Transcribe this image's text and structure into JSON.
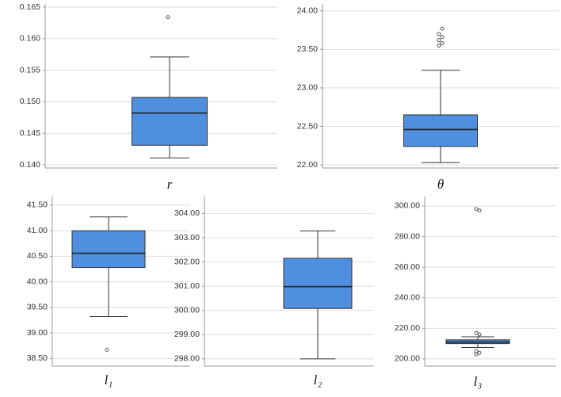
{
  "chart_data": [
    {
      "type": "box",
      "x_label": "r",
      "color": "#4f8fe0",
      "grid": true,
      "ylim": [
        0.1395,
        0.1655
      ],
      "yticks": [
        {
          "value": 0.14,
          "label": "0.140"
        },
        0.145,
        {
          "value": 0.15,
          "label": "0.150"
        },
        0.155,
        {
          "value": 0.16,
          "label": "0.160"
        },
        0.165
      ],
      "boxes": [
        {
          "whislo": 0.1411,
          "q1": 0.1431,
          "med": 0.1482,
          "q3": 0.1507,
          "whishi": 0.1571,
          "fliers": [
            0.1634
          ]
        }
      ]
    },
    {
      "type": "box",
      "x_label": "θ",
      "color": "#4f8fe0",
      "grid": true,
      "ylim": [
        21.96,
        24.09
      ],
      "yticks": [
        {
          "value": 22,
          "label": "22.00"
        },
        {
          "value": 22.5,
          "label": "22.50"
        },
        {
          "value": 23,
          "label": "23.00"
        },
        {
          "value": 23.5,
          "label": "23.50"
        },
        {
          "value": 24,
          "label": "24.00"
        }
      ],
      "boxes": [
        {
          "whislo": 22.03,
          "q1": 22.24,
          "med": 22.46,
          "q3": 22.65,
          "whishi": 23.23,
          "fliers": [
            23.55,
            23.58,
            23.62,
            23.66,
            23.7,
            23.77
          ]
        }
      ]
    },
    {
      "type": "box",
      "x_label": "l₁",
      "color": "#4f8fe0",
      "grid": true,
      "ylim": [
        38.35,
        41.67
      ],
      "yticks": [
        {
          "value": 38.5,
          "label": "38.50"
        },
        {
          "value": 39,
          "label": "39.00"
        },
        {
          "value": 39.5,
          "label": "39.50"
        },
        {
          "value": 40,
          "label": "40.00"
        },
        {
          "value": 40.5,
          "label": "40.50"
        },
        {
          "value": 41,
          "label": "41.00"
        },
        {
          "value": 41.5,
          "label": "41.50"
        }
      ],
      "boxes": [
        {
          "whislo": 39.32,
          "q1": 40.28,
          "med": 40.56,
          "q3": 41.0,
          "whishi": 41.27,
          "fliers": [
            38.67
          ]
        }
      ]
    },
    {
      "type": "box",
      "x_label": "l₂",
      "color": "#4f8fe0",
      "grid": true,
      "ylim": [
        297.7,
        304.7
      ],
      "yticks": [
        {
          "value": 298,
          "label": "298.00"
        },
        {
          "value": 299,
          "label": "299.00"
        },
        {
          "value": 300,
          "label": "300.00"
        },
        {
          "value": 301,
          "label": "301.00"
        },
        {
          "value": 302,
          "label": "302.00"
        },
        {
          "value": 303,
          "label": "303.00"
        },
        {
          "value": 304,
          "label": "304.00"
        }
      ],
      "boxes": [
        {
          "whislo": 298.0,
          "q1": 300.08,
          "med": 300.98,
          "q3": 302.15,
          "whishi": 303.28,
          "fliers": []
        }
      ]
    },
    {
      "type": "box",
      "x_label": "l₃",
      "color": "#4f8fe0",
      "grid": true,
      "ylim": [
        195.3,
        306.2
      ],
      "yticks": [
        {
          "value": 200,
          "label": "200.00"
        },
        {
          "value": 220,
          "label": "220.00"
        },
        {
          "value": 240,
          "label": "240.00"
        },
        {
          "value": 260,
          "label": "260.00"
        },
        {
          "value": 280,
          "label": "280.00"
        },
        {
          "value": 300,
          "label": "300.00"
        }
      ],
      "boxes": [
        {
          "whislo": 207.5,
          "q1": 210,
          "med": 211,
          "q3": 212.5,
          "whishi": 214.5,
          "fliers": [
            203,
            204,
            205,
            216,
            217,
            297,
            298
          ]
        }
      ]
    }
  ]
}
